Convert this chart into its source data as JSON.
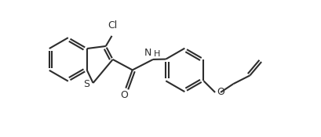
{
  "background_color": "#ffffff",
  "line_color": "#2d2d2d",
  "line_width": 1.5,
  "dbo": 0.06,
  "fig_width": 4.09,
  "fig_height": 1.75,
  "xlim": [
    0,
    9.0
  ],
  "ylim": [
    0,
    4.5
  ]
}
